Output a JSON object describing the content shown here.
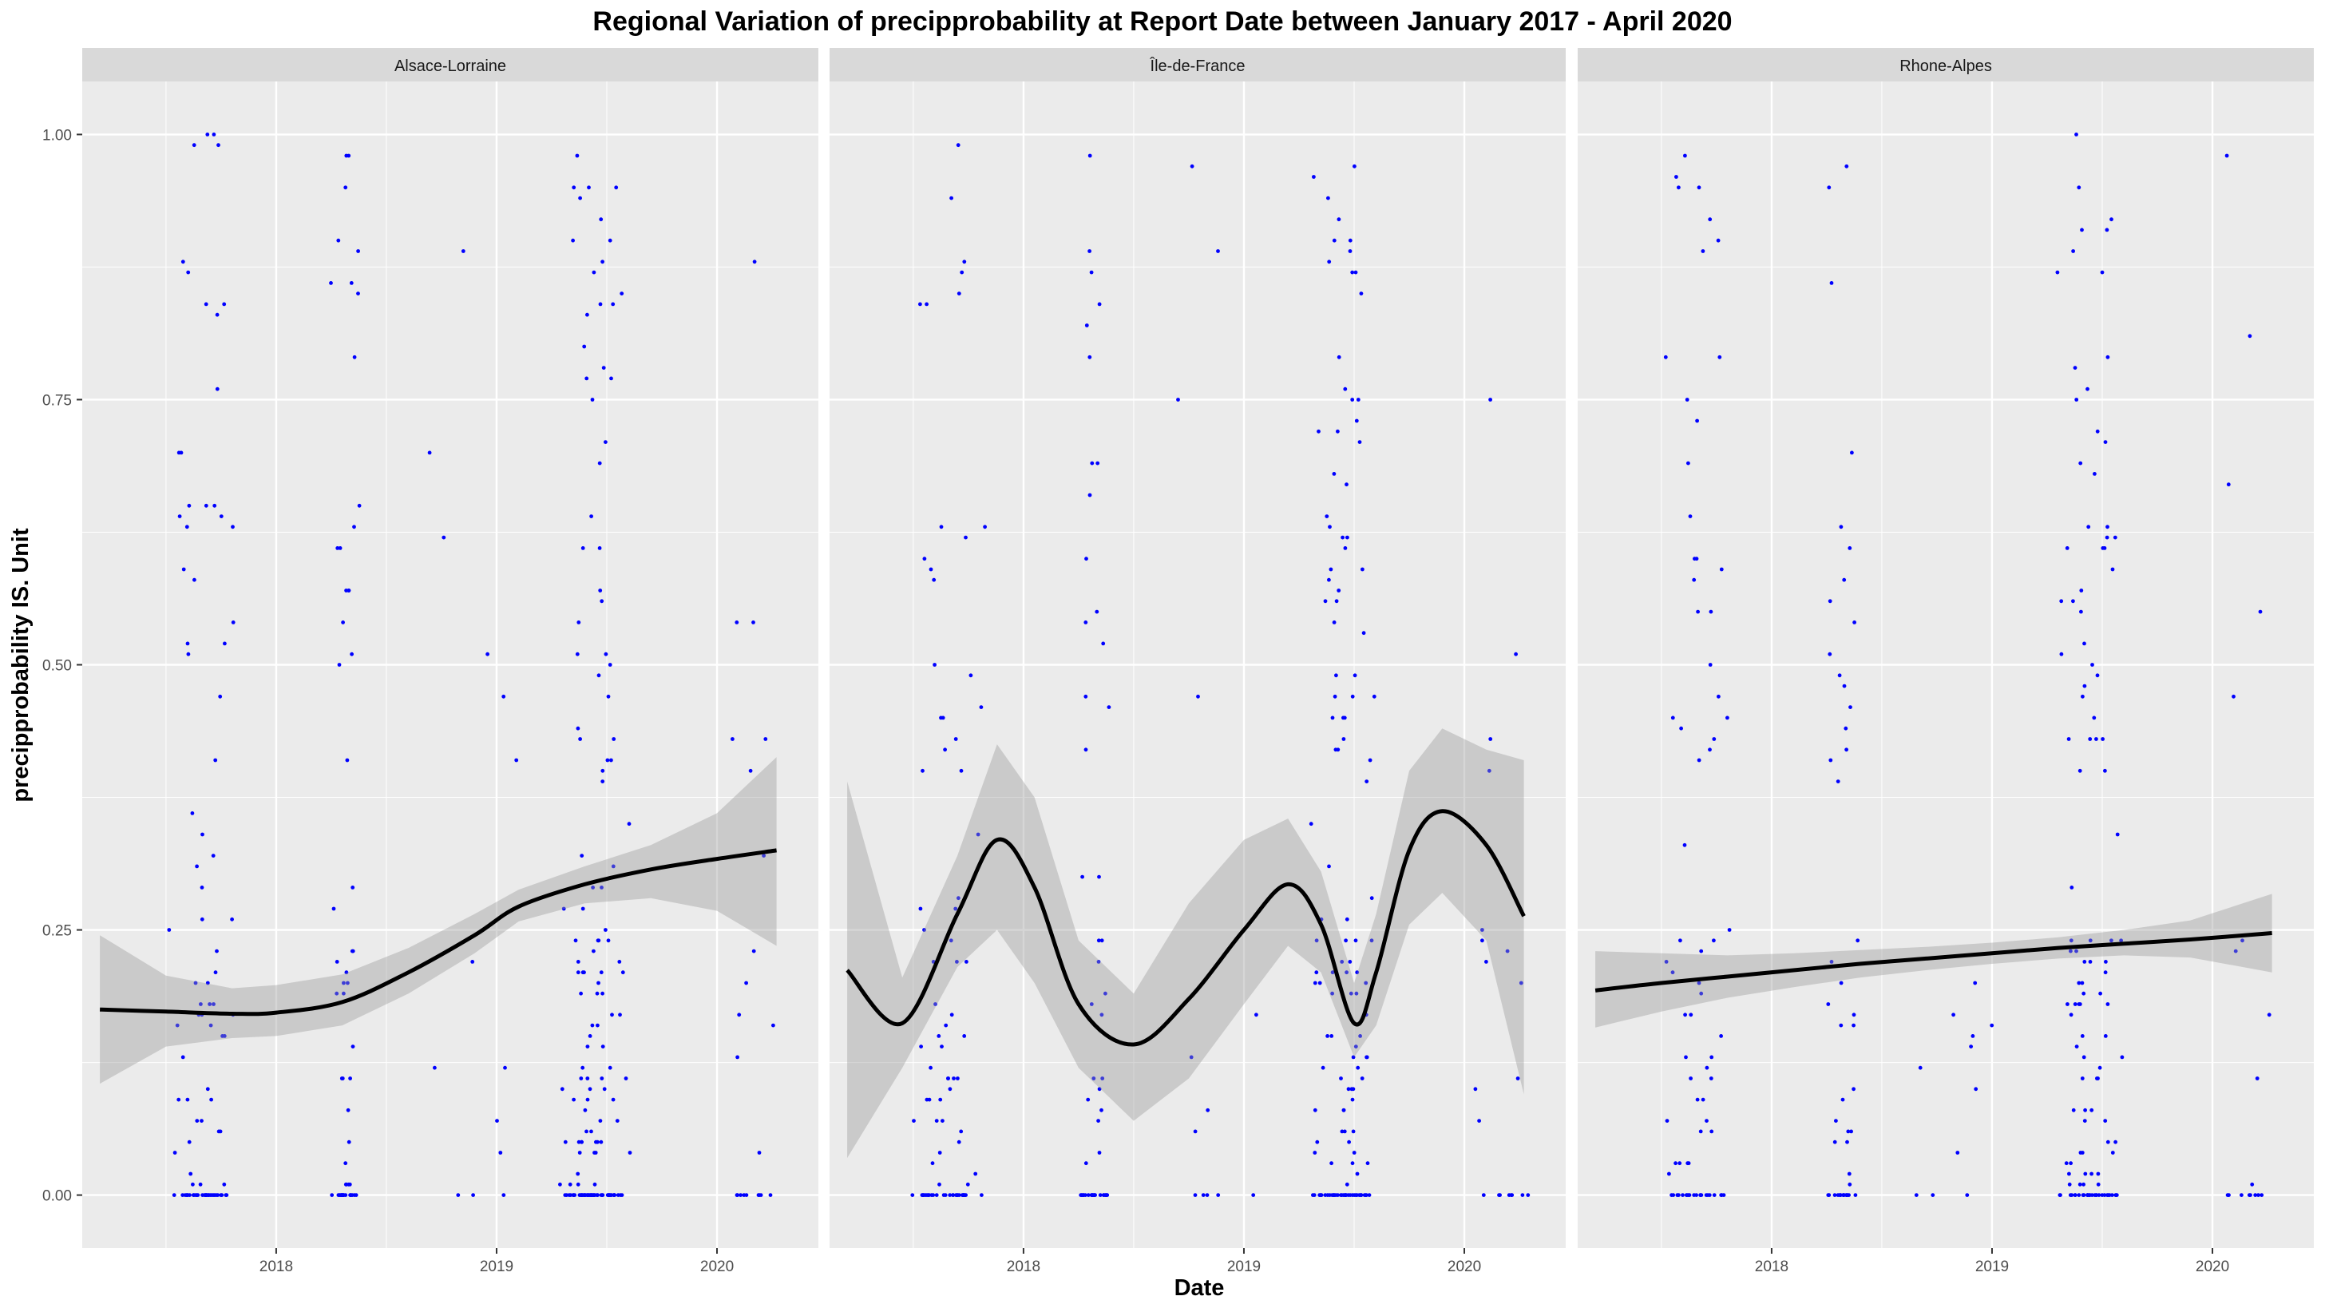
{
  "chart_data": {
    "type": "scatter",
    "title": "Regional Variation of  precipprobability  at Report Date between January 2017 - April 2020",
    "xlabel": "Date",
    "ylabel": "precipprobability  IS. Unit",
    "xlim": [
      2017.12,
      2020.46
    ],
    "ylim": [
      -0.05,
      1.05
    ],
    "x_ticks": [
      2018,
      2019,
      2020
    ],
    "x_tick_labels": [
      "2018",
      "2019",
      "2020"
    ],
    "y_ticks": [
      0,
      0.25,
      0.5,
      0.75,
      1
    ],
    "y_tick_labels": [
      "0.00",
      "0.25",
      "0.50",
      "0.75",
      "1.00"
    ],
    "grid": true,
    "colors": {
      "point": "#0000ff",
      "smooth_line": "#000000",
      "confidence_band": "#999999",
      "panel_bg": "#ebebeb",
      "strip_bg": "#d9d9d9",
      "grid": "#ffffff"
    },
    "panels": [
      {
        "name": "Alsace-Lorraine",
        "smooth": {
          "x": [
            2017.2,
            2017.5,
            2017.8,
            2018.0,
            2018.3,
            2018.6,
            2018.9,
            2019.1,
            2019.4,
            2019.7,
            2020.0,
            2020.27
          ],
          "y": [
            0.175,
            0.173,
            0.171,
            0.172,
            0.182,
            0.21,
            0.245,
            0.272,
            0.293,
            0.307,
            0.317,
            0.325
          ],
          "lower": [
            0.105,
            0.14,
            0.148,
            0.15,
            0.16,
            0.19,
            0.228,
            0.258,
            0.275,
            0.28,
            0.268,
            0.235
          ],
          "upper": [
            0.245,
            0.207,
            0.195,
            0.198,
            0.208,
            0.233,
            0.265,
            0.288,
            0.31,
            0.33,
            0.36,
            0.413
          ]
        }
      },
      {
        "name": "Île-de-France",
        "smooth": {
          "x": [
            2017.2,
            2017.45,
            2017.7,
            2017.88,
            2018.05,
            2018.25,
            2018.5,
            2018.75,
            2019.0,
            2019.2,
            2019.35,
            2019.5,
            2019.6,
            2019.75,
            2019.9,
            2020.1,
            2020.27
          ],
          "y": [
            0.212,
            0.162,
            0.265,
            0.335,
            0.29,
            0.18,
            0.142,
            0.185,
            0.25,
            0.293,
            0.255,
            0.162,
            0.21,
            0.325,
            0.362,
            0.33,
            0.263
          ],
          "lower": [
            0.035,
            0.12,
            0.215,
            0.25,
            0.2,
            0.12,
            0.07,
            0.11,
            0.18,
            0.235,
            0.21,
            0.13,
            0.16,
            0.255,
            0.285,
            0.24,
            0.095
          ],
          "upper": [
            0.39,
            0.205,
            0.32,
            0.425,
            0.375,
            0.24,
            0.19,
            0.275,
            0.335,
            0.355,
            0.305,
            0.2,
            0.265,
            0.4,
            0.44,
            0.42,
            0.41
          ]
        }
      },
      {
        "name": "Rhone-Alpes",
        "smooth": {
          "x": [
            2017.2,
            2017.5,
            2017.8,
            2018.1,
            2018.4,
            2018.7,
            2019.0,
            2019.3,
            2019.6,
            2019.9,
            2020.27
          ],
          "y": [
            0.193,
            0.2,
            0.206,
            0.212,
            0.218,
            0.223,
            0.228,
            0.233,
            0.237,
            0.241,
            0.247
          ],
          "lower": [
            0.158,
            0.173,
            0.186,
            0.196,
            0.205,
            0.212,
            0.218,
            0.223,
            0.226,
            0.224,
            0.21
          ],
          "upper": [
            0.23,
            0.228,
            0.226,
            0.228,
            0.231,
            0.234,
            0.238,
            0.243,
            0.25,
            0.259,
            0.284
          ]
        }
      }
    ]
  }
}
